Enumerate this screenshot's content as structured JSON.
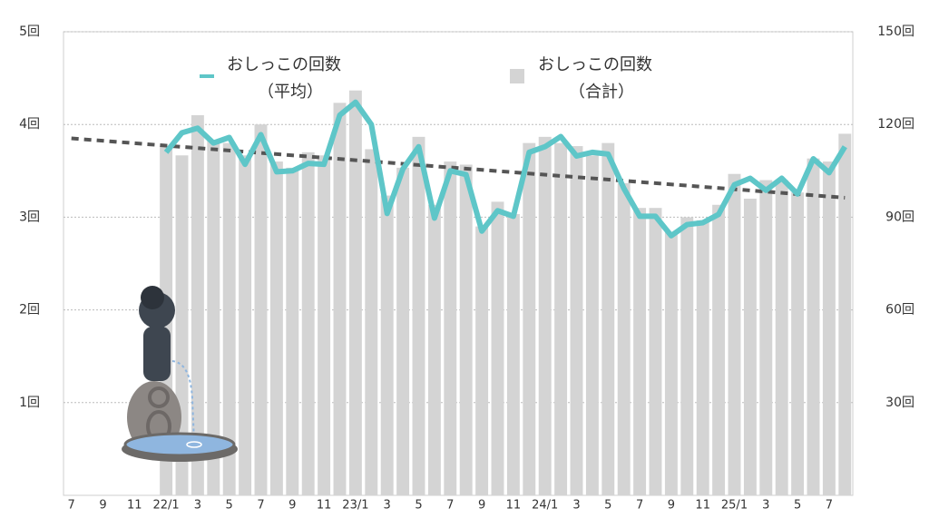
{
  "chart_data": {
    "type": "bar_line",
    "categories": [
      "7",
      null,
      "9",
      null,
      "11",
      null,
      "22/1",
      null,
      "3",
      null,
      "5",
      null,
      "7",
      null,
      "9",
      null,
      "11",
      null,
      "23/1",
      null,
      "3",
      null,
      "5",
      null,
      "7",
      null,
      "9",
      null,
      "11",
      null,
      "24/1",
      null,
      "3",
      null,
      "5",
      null,
      "7",
      null,
      "9",
      null,
      "11",
      null,
      "25/1",
      null,
      "3",
      null,
      "5",
      null,
      "7",
      null
    ],
    "series": [
      {
        "name": "おしっこの回数",
        "sublabel": "（合計）",
        "color": "#d4d4d4",
        "axis": "y2",
        "kind": "bar",
        "values": [
          null,
          null,
          null,
          null,
          null,
          null,
          113,
          110,
          123,
          115,
          114,
          110,
          120,
          108,
          106,
          111,
          110,
          127,
          131,
          112,
          97,
          106,
          116,
          94,
          108,
          107,
          87,
          95,
          91,
          114,
          116,
          114,
          113,
          110,
          114,
          101,
          93,
          93,
          85,
          90,
          89,
          94,
          104,
          96,
          102,
          102,
          98,
          109,
          108,
          117
        ]
      },
      {
        "name": "おしっこの回数",
        "sublabel": "（平均）",
        "color": "#5ec6c8",
        "kind": "line",
        "values": [
          null,
          null,
          null,
          null,
          null,
          null,
          3.7,
          3.91,
          3.96,
          3.8,
          3.86,
          3.57,
          3.89,
          3.49,
          3.5,
          3.58,
          3.57,
          4.1,
          4.24,
          4.0,
          3.04,
          3.52,
          3.76,
          2.99,
          3.5,
          3.46,
          2.85,
          3.07,
          3.01,
          3.7,
          3.76,
          3.87,
          3.66,
          3.7,
          3.68,
          3.31,
          3.01,
          3.01,
          2.8,
          2.92,
          2.94,
          3.03,
          3.35,
          3.42,
          3.29,
          3.42,
          3.25,
          3.63,
          3.48,
          3.76
        ]
      }
    ],
    "trendline": {
      "color": "#555555",
      "values": [
        3.85,
        3.21
      ]
    },
    "ylim": [
      0,
      5
    ],
    "yticks": [
      {
        "value": 1,
        "label": "1回"
      },
      {
        "value": 2,
        "label": "2回"
      },
      {
        "value": 3,
        "label": "3回"
      },
      {
        "value": 4,
        "label": "4回"
      },
      {
        "value": 5,
        "label": "5回"
      }
    ],
    "y2lim": [
      0,
      150
    ],
    "y2ticks": [
      {
        "value": 30,
        "label": "30回"
      },
      {
        "value": 60,
        "label": "60回"
      },
      {
        "value": 90,
        "label": "90回"
      },
      {
        "value": 120,
        "label": "120回"
      },
      {
        "value": 150,
        "label": "150回"
      }
    ],
    "grid": true
  }
}
